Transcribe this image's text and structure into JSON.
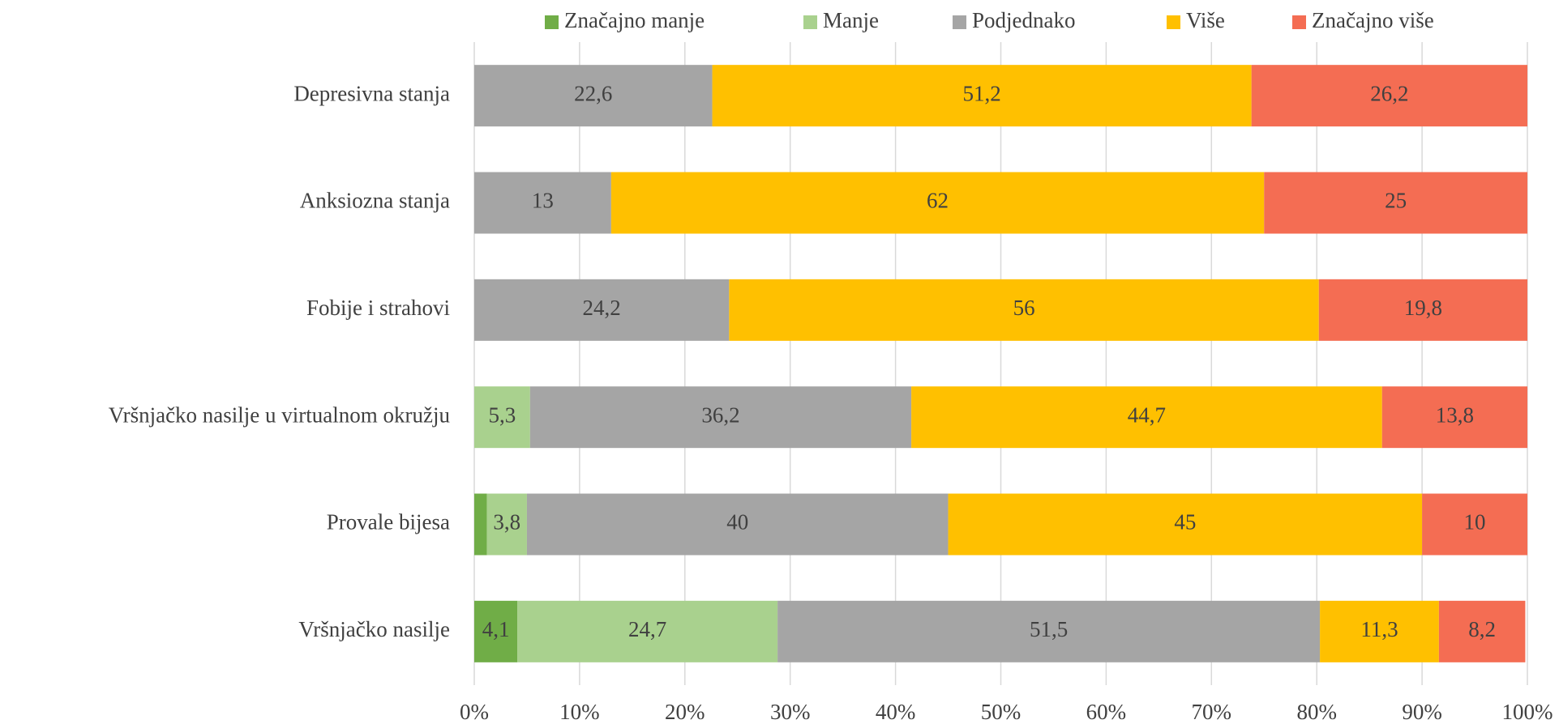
{
  "chart_data": {
    "type": "stacked_bar_horizontal",
    "categories": [
      "Depresivna stanja",
      "Anksiozna stanja",
      "Fobije i strahovi",
      "Vršnjačko nasilje u virtualnom okružju",
      "Provale bijesa",
      "Vršnjačko nasilje"
    ],
    "series": [
      {
        "name": "Značajno manje",
        "color": "#70ad47",
        "values": [
          0,
          0,
          0,
          0,
          1.2,
          4.1
        ],
        "value_labels": [
          null,
          null,
          null,
          null,
          null,
          "4,1"
        ]
      },
      {
        "name": "Manje",
        "color": "#a9d18e",
        "values": [
          0,
          0,
          0,
          5.3,
          3.8,
          24.7
        ],
        "value_labels": [
          null,
          null,
          null,
          "5,3",
          "3,8",
          "24,7"
        ]
      },
      {
        "name": "Podjednako",
        "color": "#a5a5a5",
        "values": [
          22.6,
          13,
          24.2,
          36.2,
          40,
          51.5
        ],
        "value_labels": [
          "22,6",
          "13",
          "24,2",
          "36,2",
          "40",
          "51,5"
        ]
      },
      {
        "name": "Više",
        "color": "#ffc000",
        "values": [
          51.2,
          62,
          56,
          44.7,
          45,
          11.3
        ],
        "value_labels": [
          "51,2",
          "62",
          "56",
          "44,7",
          "45",
          "11,3"
        ]
      },
      {
        "name": "Značajno više",
        "color": "#f46d53",
        "values": [
          26.2,
          25,
          19.8,
          13.8,
          10,
          8.2
        ],
        "value_labels": [
          "26,2",
          "25",
          "19,8",
          "13,8",
          "10",
          "8,2"
        ]
      }
    ],
    "xlim": [
      0,
      100
    ],
    "xticks": [
      {
        "value": 0,
        "label": "0%"
      },
      {
        "value": 10,
        "label": "10%"
      },
      {
        "value": 20,
        "label": "20%"
      },
      {
        "value": 30,
        "label": "30%"
      },
      {
        "value": 40,
        "label": "40%"
      },
      {
        "value": 50,
        "label": "50%"
      },
      {
        "value": 60,
        "label": "60%"
      },
      {
        "value": 70,
        "label": "70%"
      },
      {
        "value": 80,
        "label": "80%"
      },
      {
        "value": 90,
        "label": "90%"
      },
      {
        "value": 100,
        "label": "100%"
      }
    ],
    "grid": true,
    "legend": "top"
  }
}
